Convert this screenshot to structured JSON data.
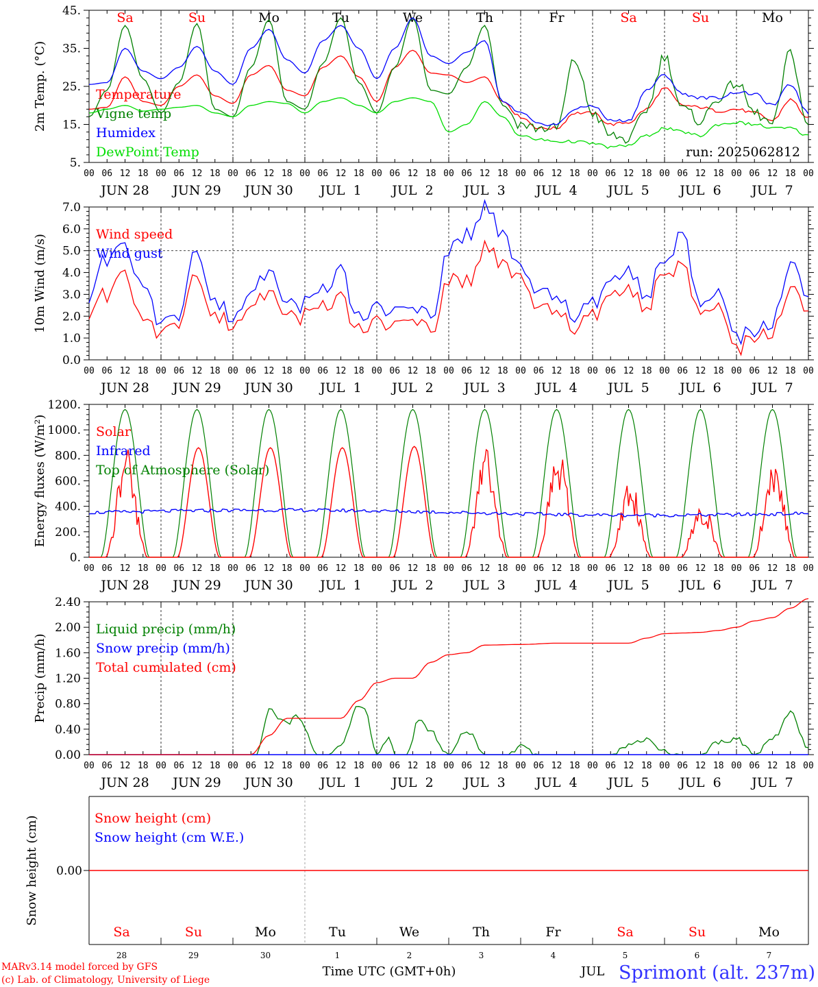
{
  "days": [
    "JUN 28",
    "JUN 29",
    "JUN 30",
    "JUL  1",
    "JUL  2",
    "JUL  3",
    "JUL  4",
    "JUL  5",
    "JUL  6",
    "JUL  7"
  ],
  "day_names": [
    "Sa",
    "Su",
    "Mo",
    "Tu",
    "We",
    "Th",
    "Fr",
    "Sa",
    "Su",
    "Mo"
  ],
  "day_name_colors": [
    "#ff0000",
    "#ff0000",
    "#000000",
    "#000000",
    "#000000",
    "#000000",
    "#000000",
    "#ff0000",
    "#ff0000",
    "#000000"
  ],
  "day_numbers": [
    "28",
    "29",
    "30",
    "1",
    "2",
    "3",
    "4",
    "5",
    "6",
    "7"
  ],
  "hour_ticks": [
    "00",
    "06",
    "12",
    "18"
  ],
  "hour_end": "00",
  "run_label": "run: 2025062812",
  "footer": {
    "model": "MARv3.14 model forced by GFS",
    "lab": "(c) Lab. of Climatology, University of Liege",
    "xlabel": "Time UTC (GMT+0h)",
    "month": "JUL",
    "station": "Sprimont (alt. 237m)"
  },
  "colors": {
    "red": "#ff0000",
    "green": "#008000",
    "blue": "#0000ff",
    "lightgreen": "#00dd00",
    "station": "#3333ff"
  },
  "chart_data": [
    {
      "type": "line",
      "ylabel": "2m Temp. (°C)",
      "ylim": [
        5,
        45
      ],
      "yticks": [
        "5.",
        "15.",
        "25.",
        "35.",
        "45."
      ],
      "grid": "vertical dotted lines at day boundaries",
      "legend_placement": "left",
      "series": [
        {
          "name": "Temperature",
          "color": "#ff0000",
          "x": [
            0,
            6,
            12,
            18,
            24,
            30,
            36,
            42,
            48,
            54,
            60,
            66,
            72,
            78,
            84,
            90,
            96,
            102,
            108,
            114,
            120,
            126,
            132,
            138,
            144,
            150,
            156,
            162,
            168,
            174,
            180,
            186,
            192,
            198,
            204,
            210,
            216,
            222,
            228,
            234,
            240
          ],
          "y": [
            19,
            19.5,
            27.5,
            21,
            20,
            25,
            28,
            22.5,
            20.5,
            28,
            30.5,
            24,
            22.5,
            30,
            33,
            27.5,
            21,
            30,
            34.5,
            28.5,
            28,
            26,
            27.5,
            21,
            17,
            14,
            14,
            18,
            18,
            15,
            15.5,
            19,
            24.5,
            20,
            19.5,
            18.5,
            19,
            18,
            16,
            21.5,
            16.5
          ]
        },
        {
          "name": "Vigne temp",
          "color": "#008000",
          "x": [
            0,
            6,
            12,
            18,
            24,
            30,
            36,
            42,
            48,
            54,
            60,
            66,
            72,
            78,
            84,
            90,
            96,
            102,
            108,
            114,
            120,
            126,
            132,
            138,
            144,
            150,
            156,
            162,
            168,
            174,
            180,
            186,
            192,
            198,
            204,
            210,
            216,
            222,
            228,
            234,
            240
          ],
          "y": [
            17,
            24,
            41,
            27,
            18,
            26,
            41.5,
            19,
            17,
            30,
            42.5,
            21,
            19,
            31,
            43,
            26,
            18,
            30,
            43,
            24,
            23,
            30,
            41,
            20,
            15,
            14,
            14,
            32,
            18,
            12,
            11,
            19,
            33,
            19,
            16,
            22,
            26,
            18,
            15,
            34,
            14
          ]
        },
        {
          "name": "Humidex",
          "color": "#0000ff",
          "x": [
            0,
            6,
            12,
            18,
            24,
            30,
            36,
            42,
            48,
            54,
            60,
            66,
            72,
            78,
            84,
            90,
            96,
            102,
            108,
            114,
            120,
            126,
            132,
            138,
            144,
            150,
            156,
            162,
            168,
            174,
            180,
            186,
            192,
            198,
            204,
            210,
            216,
            222,
            228,
            234,
            240
          ],
          "y": [
            25.5,
            26,
            35,
            29,
            27,
            30,
            35.5,
            29,
            25.5,
            35,
            40,
            32,
            28.5,
            37,
            41,
            35,
            27,
            35,
            43,
            33,
            31,
            34,
            37,
            21,
            18,
            15,
            15,
            19,
            20,
            16,
            16,
            24,
            28,
            23,
            22,
            22,
            23.5,
            23,
            20,
            25.5,
            18
          ]
        },
        {
          "name": "DewPoint Temp",
          "color": "#00dd00",
          "x": [
            0,
            6,
            12,
            18,
            24,
            30,
            36,
            42,
            48,
            54,
            60,
            66,
            72,
            78,
            84,
            90,
            96,
            102,
            108,
            114,
            120,
            126,
            132,
            138,
            144,
            150,
            156,
            162,
            168,
            174,
            180,
            186,
            192,
            198,
            204,
            210,
            216,
            222,
            228,
            234,
            240
          ],
          "y": [
            18,
            19,
            20,
            18.5,
            19,
            19.5,
            20,
            18,
            17,
            20,
            21,
            20.5,
            18,
            21,
            22,
            20,
            18,
            21,
            22,
            21,
            13,
            15,
            21,
            17,
            12,
            11,
            10.5,
            10.5,
            10,
            9,
            9.5,
            12,
            14,
            13,
            12,
            15,
            15.5,
            15,
            14,
            14,
            12
          ]
        }
      ]
    },
    {
      "type": "line",
      "ylabel": "10m Wind (m/s)",
      "ylim": [
        0,
        7
      ],
      "yticks": [
        "0.0",
        "1.0",
        "2.0",
        "3.0",
        "4.0",
        "5.0",
        "6.0",
        "7.0"
      ],
      "reference_line": 5.0,
      "legend_placement": "top-left",
      "series": [
        {
          "name": "Wind speed",
          "color": "#ff0000",
          "x": [
            0,
            6,
            12,
            18,
            24,
            30,
            36,
            42,
            48,
            54,
            60,
            66,
            72,
            78,
            84,
            90,
            96,
            102,
            108,
            114,
            120,
            126,
            132,
            138,
            144,
            150,
            156,
            162,
            168,
            174,
            180,
            186,
            192,
            198,
            204,
            210,
            216,
            222,
            228,
            234,
            240
          ],
          "y": [
            2.2,
            3,
            4,
            2,
            1.2,
            1.5,
            3.8,
            2.2,
            1.3,
            2.2,
            3,
            1.8,
            2,
            2.5,
            2.9,
            1.3,
            2,
            1.6,
            1.6,
            1.4,
            3.8,
            3.6,
            5,
            4.5,
            3.6,
            2.5,
            2.2,
            1.5,
            2,
            3,
            3,
            2.5,
            4,
            4.5,
            2,
            2.8,
            0.5,
            1.2,
            1.2,
            3.5,
            1.9
          ]
        },
        {
          "name": "Wind gust",
          "color": "#0000ff",
          "x": [
            0,
            6,
            12,
            18,
            24,
            30,
            36,
            42,
            48,
            54,
            60,
            66,
            72,
            78,
            84,
            90,
            96,
            102,
            108,
            114,
            120,
            126,
            132,
            138,
            144,
            150,
            156,
            162,
            168,
            174,
            180,
            186,
            192,
            198,
            204,
            210,
            216,
            222,
            228,
            234,
            240
          ],
          "y": [
            2.9,
            4.6,
            5.2,
            3.5,
            1.6,
            1.8,
            4.9,
            2.8,
            1.6,
            2.8,
            3.9,
            2.3,
            2.5,
            3.2,
            4.1,
            1.8,
            2.6,
            2.2,
            2.1,
            2,
            5.1,
            5.7,
            6.8,
            5.8,
            4,
            3.2,
            2.8,
            2,
            2.5,
            3.6,
            3.8,
            3,
            4.5,
            5.9,
            2.3,
            3.4,
            1,
            1.4,
            1.6,
            4.6,
            2.5
          ]
        }
      ]
    },
    {
      "type": "line",
      "ylabel": "Energy fluxes (W/m²)",
      "ylim": [
        0,
        1200
      ],
      "yticks": [
        "0.",
        "200.",
        "400.",
        "600.",
        "800.",
        "1000.",
        "1200."
      ],
      "legend_placement": "top-left",
      "series": [
        {
          "name": "Solar",
          "color": "#ff0000",
          "daily_peaks": [
            860,
            860,
            860,
            860,
            870,
            860,
            860,
            630,
            470,
            820
          ]
        },
        {
          "name": "Infrared",
          "color": "#0000ff",
          "approx_level": [
            350,
            420
          ]
        },
        {
          "name": "Top of Atmosphere (Solar)",
          "color": "#008000",
          "daily_peak": 1160
        }
      ]
    },
    {
      "type": "line",
      "ylabel": "Precip (mm/h)",
      "ylim": [
        0,
        2.4
      ],
      "yticks": [
        "0.00",
        "0.40",
        "0.80",
        "1.20",
        "1.60",
        "2.00",
        "2.40"
      ],
      "legend_placement": "top-left",
      "series": [
        {
          "name": "Liquid precip (mm/h)",
          "color": "#008000",
          "x": [
            0,
            56,
            60,
            66,
            70,
            76,
            80,
            84,
            90,
            92,
            96,
            100,
            102,
            106,
            110,
            114,
            120,
            126,
            132,
            136,
            140,
            144,
            150,
            156,
            168,
            174,
            180,
            186,
            192,
            198,
            204,
            210,
            216,
            222,
            228,
            234,
            240
          ],
          "y": [
            0,
            0,
            0.7,
            0.5,
            0.6,
            0,
            0,
            0.15,
            0.78,
            0.7,
            0,
            0.25,
            0,
            0,
            0.55,
            0.35,
            0,
            0.38,
            0,
            0,
            0,
            0.15,
            0,
            0,
            0,
            0,
            0.15,
            0.25,
            0.05,
            0,
            0,
            0.2,
            0.25,
            0,
            0.25,
            0.65,
            0.1
          ]
        },
        {
          "name": "Snow precip (mm/h)",
          "color": "#0000ff",
          "x": [
            0,
            240
          ],
          "y": [
            0,
            0
          ]
        },
        {
          "name": "Total cumulated (cm)",
          "color": "#ff0000",
          "x": [
            0,
            54,
            60,
            66,
            84,
            90,
            96,
            102,
            108,
            114,
            120,
            126,
            132,
            144,
            156,
            168,
            174,
            180,
            186,
            192,
            198,
            204,
            210,
            216,
            222,
            228,
            234,
            240
          ],
          "y": [
            0,
            0,
            0.3,
            0.57,
            0.57,
            0.85,
            1.13,
            1.2,
            1.2,
            1.45,
            1.57,
            1.6,
            1.72,
            1.73,
            1.75,
            1.75,
            1.75,
            1.75,
            1.83,
            1.9,
            1.91,
            1.92,
            1.95,
            2.0,
            2.1,
            2.15,
            2.3,
            2.45
          ]
        }
      ]
    },
    {
      "type": "line",
      "ylabel": "Snow height (cm)",
      "yticks": [
        "0.00"
      ],
      "legend_placement": "top-left",
      "series": [
        {
          "name": "Snow height (cm)",
          "color": "#ff0000",
          "x": [
            0,
            240
          ],
          "y": [
            0,
            0
          ]
        },
        {
          "name": "Snow height (cm W.E.)",
          "color": "#0000ff",
          "x": [
            0,
            240
          ],
          "y": [
            0,
            0
          ]
        }
      ]
    }
  ]
}
